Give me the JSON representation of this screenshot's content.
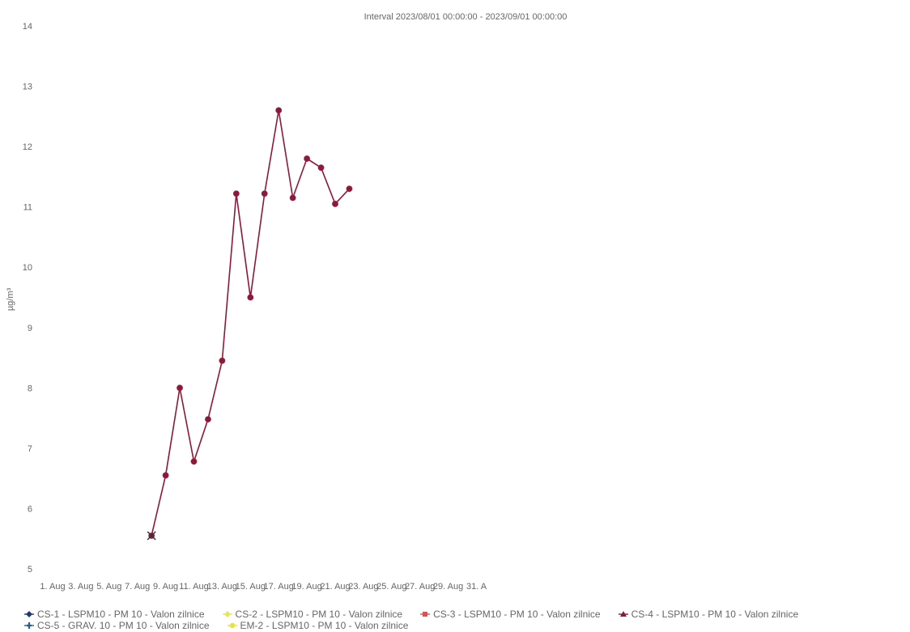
{
  "chart_data": {
    "type": "line",
    "title": "Interval 2023/08/01 00:00:00 - 2023/09/01 00:00:00",
    "xlabel": "",
    "ylabel": "µg/m³",
    "ylim": [
      5,
      14
    ],
    "y_ticks": [
      "5",
      "6",
      "7",
      "8",
      "9",
      "10",
      "11",
      "12",
      "13",
      "14"
    ],
    "x_ticks": [
      "1. Aug",
      "3. Aug",
      "5. Aug",
      "7. Aug",
      "9. Aug",
      "11. Aug",
      "13. Aug",
      "15. Aug",
      "17. Aug",
      "19. Aug",
      "21. Aug",
      "23. Aug",
      "25. Aug",
      "27. Aug",
      "29. Aug",
      "31. A"
    ],
    "grid": false,
    "legend_position": "bottom",
    "series": [
      {
        "name": "CS-4 - LSPM10 - PM 10 - Valon zilnice",
        "color": "#8b1a3a",
        "x": [
          "2023-08-08",
          "2023-08-09",
          "2023-08-10",
          "2023-08-11",
          "2023-08-12",
          "2023-08-13",
          "2023-08-14",
          "2023-08-15",
          "2023-08-16",
          "2023-08-17",
          "2023-08-18",
          "2023-08-19",
          "2023-08-20",
          "2023-08-21",
          "2023-08-22"
        ],
        "y": [
          5.55,
          6.55,
          8.0,
          6.78,
          7.48,
          8.45,
          11.22,
          9.5,
          11.22,
          12.6,
          11.15,
          11.8,
          11.65,
          11.05,
          11.3
        ]
      },
      {
        "name": "CS-5 - GRAV. 10 - PM 10 - Valon zilnice",
        "color": "#333333",
        "marker": "x",
        "x": [
          "2023-08-08"
        ],
        "y": [
          5.55
        ]
      }
    ]
  },
  "legend": [
    [
      {
        "label": "CS-1 - LSPM10 - PM 10 - Valon zilnice",
        "color": "#1f3b6b",
        "icon": "diamond-icon"
      },
      {
        "label": "CS-2 - LSPM10 - PM 10 - Valon zilnice",
        "color": "#e6e65a",
        "icon": "diamond-icon"
      },
      {
        "label": "CS-3 - LSPM10 - PM 10 - Valon zilnice",
        "color": "#d9534f",
        "icon": "square-icon"
      },
      {
        "label": "CS-4 - LSPM10 - PM 10 - Valon zilnice",
        "color": "#8b1a3a",
        "icon": "triangle-icon"
      }
    ],
    [
      {
        "label": "CS-5 - GRAV. 10 - PM 10 - Valon zilnice",
        "color": "#2a5d8a",
        "icon": "cross-icon"
      },
      {
        "label": "EM-2 - LSPM10 - PM 10 - Valon zilnice",
        "color": "#e8e23a",
        "icon": "circle-icon"
      }
    ]
  ]
}
